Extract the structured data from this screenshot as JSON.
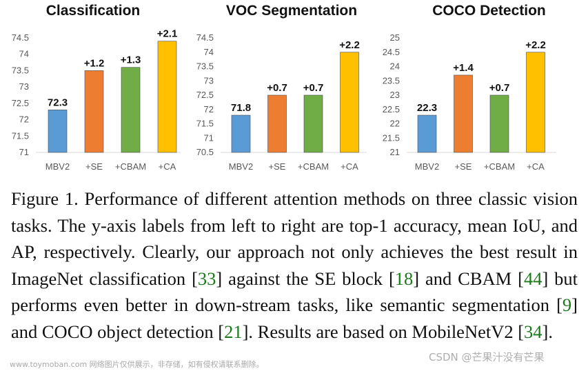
{
  "chart_data": [
    {
      "type": "bar",
      "title": "Classification",
      "categories": [
        "MBV2",
        "+SE",
        "+CBAM",
        "+CA"
      ],
      "values": [
        72.3,
        73.5,
        73.6,
        74.4
      ],
      "data_labels": [
        "72.3",
        "+1.2",
        "+1.3",
        "+2.1"
      ],
      "ylim": [
        71,
        74.5
      ],
      "yticks": [
        "71",
        "71.5",
        "72",
        "72.5",
        "73",
        "73.5",
        "74",
        "74.5"
      ],
      "colors": [
        "#5b9bd5",
        "#ed7d31",
        "#70ad47",
        "#ffc000"
      ],
      "grid": false,
      "legend": "none"
    },
    {
      "type": "bar",
      "title": "VOC Segmentation",
      "categories": [
        "MBV2",
        "+SE",
        "+CBAM",
        "+CA"
      ],
      "values": [
        71.8,
        72.5,
        72.5,
        74.0
      ],
      "data_labels": [
        "71.8",
        "+0.7",
        "+0.7",
        "+2.2"
      ],
      "ylim": [
        70.5,
        74.5
      ],
      "yticks": [
        "70.5",
        "71",
        "71.5",
        "72",
        "72.5",
        "73",
        "73.5",
        "74",
        "74.5"
      ],
      "colors": [
        "#5b9bd5",
        "#ed7d31",
        "#70ad47",
        "#ffc000"
      ],
      "grid": false,
      "legend": "none"
    },
    {
      "type": "bar",
      "title": "COCO Detection",
      "categories": [
        "MBV2",
        "+SE",
        "+CBAM",
        "+CA"
      ],
      "values": [
        22.3,
        23.7,
        23.0,
        24.5
      ],
      "data_labels": [
        "22.3",
        "+1.4",
        "+0.7",
        "+2.2"
      ],
      "ylim": [
        21,
        25
      ],
      "yticks": [
        "21",
        "21.5",
        "22",
        "22.5",
        "23",
        "23.5",
        "24",
        "24.5",
        "25"
      ],
      "colors": [
        "#5b9bd5",
        "#ed7d31",
        "#70ad47",
        "#ffc000"
      ],
      "grid": false,
      "legend": "none"
    }
  ],
  "caption": {
    "prefix": "Figure 1. Performance of different attention methods on three classic vision tasks. The y-axis labels from left to right are top-1 accuracy, mean IoU, and AP, respectively. Clearly, our approach not only achieves the best result in ImageNet classification [",
    "ref1": "33",
    "mid1": "] against the SE block [",
    "ref2": "18",
    "mid2": "] and CBAM [",
    "ref3": "44",
    "mid3": "] but performs even better in down-stream tasks, like semantic segmentation [",
    "ref4": "9",
    "mid4": "] and COCO object detection [",
    "ref5": "21",
    "mid5": "]. Results are based on MobileNetV2 [",
    "ref6": "34",
    "suffix": "]."
  },
  "watermark": {
    "left": "www.toymoban.com 网络图片仅供展示，非存储，如有侵权请联系删除。",
    "right": "CSDN @芒果汁没有芒果"
  }
}
